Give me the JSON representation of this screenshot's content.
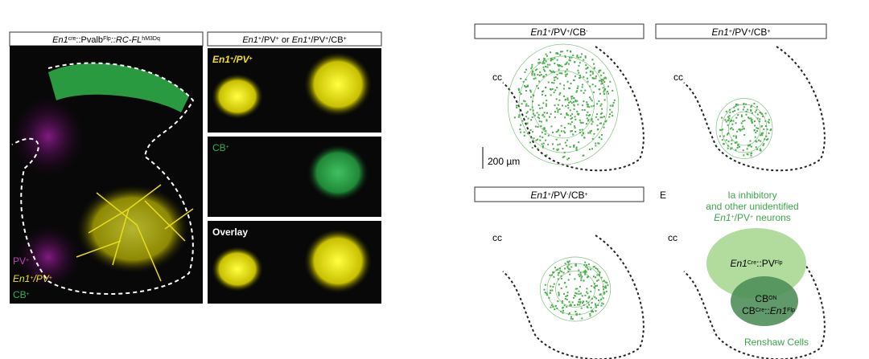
{
  "left": {
    "header": [
      {
        "t": "En1",
        "f": "i"
      },
      {
        "t": "cre",
        "f": "s"
      },
      {
        "t": "::Pvalb"
      },
      {
        "t": "Flp",
        "f": "s"
      },
      {
        "t": "::RC-FL",
        "f": "i"
      },
      {
        "t": "hM3Dq",
        "f": "s"
      }
    ],
    "pv": [
      {
        "t": "PV"
      },
      {
        "t": "+",
        "f": "s"
      }
    ],
    "en1": [
      {
        "t": "En1",
        "f": "i"
      },
      {
        "t": "+",
        "f": "s"
      },
      {
        "t": "/PV",
        "f": "i"
      },
      {
        "t": "+",
        "f": "s"
      }
    ],
    "cb": [
      {
        "t": "CB"
      },
      {
        "t": "+",
        "f": "s"
      }
    ]
  },
  "middle": {
    "header": [
      {
        "t": "En1",
        "f": "i"
      },
      {
        "t": "+",
        "f": "s"
      },
      {
        "t": "/PV"
      },
      {
        "t": "+",
        "f": "s"
      },
      {
        "t": " or "
      },
      {
        "t": "En1",
        "f": "i"
      },
      {
        "t": "+",
        "f": "s"
      },
      {
        "t": "/PV"
      },
      {
        "t": "+",
        "f": "s"
      },
      {
        "t": "/CB"
      },
      {
        "t": "+",
        "f": "s"
      }
    ],
    "en1": [
      {
        "t": "En1",
        "f": "i"
      },
      {
        "t": "+",
        "f": "s"
      },
      {
        "t": "/PV",
        "f": "i"
      },
      {
        "t": "+",
        "f": "s"
      }
    ],
    "cb": [
      {
        "t": "CB"
      },
      {
        "t": "+",
        "f": "s"
      }
    ],
    "overlay": [
      {
        "t": "Overlay"
      }
    ]
  },
  "right": {
    "title_a": [
      {
        "t": "En1",
        "f": "i"
      },
      {
        "t": "+",
        "f": "s"
      },
      {
        "t": "/PV"
      },
      {
        "t": "+",
        "f": "s"
      },
      {
        "t": "/CB"
      },
      {
        "t": "-",
        "f": "s"
      }
    ],
    "title_b": [
      {
        "t": "En1",
        "f": "i"
      },
      {
        "t": "+",
        "f": "s"
      },
      {
        "t": "/PV"
      },
      {
        "t": "+",
        "f": "s"
      },
      {
        "t": "/CB"
      },
      {
        "t": "+",
        "f": "s"
      }
    ],
    "title_c": [
      {
        "t": "En1",
        "f": "i"
      },
      {
        "t": "+",
        "f": "s"
      },
      {
        "t": "/PV"
      },
      {
        "t": "-",
        "f": "s"
      },
      {
        "t": "/CB"
      },
      {
        "t": "+",
        "f": "s"
      }
    ],
    "cc": [
      "cc",
      "cc",
      "cc",
      "cc"
    ],
    "scale": "200 µm",
    "panel_e": "E",
    "ia_1": [
      {
        "t": "Ia inhibitory"
      }
    ],
    "ia_2": [
      {
        "t": "and other unidentified"
      }
    ],
    "ia_3": [
      {
        "t": "En1",
        "f": "i"
      },
      {
        "t": "+",
        "f": "s"
      },
      {
        "t": "/PV"
      },
      {
        "t": "+",
        "f": "s"
      },
      {
        "t": " neurons"
      }
    ],
    "big": [
      {
        "t": "En1",
        "f": "i"
      },
      {
        "t": "Cre",
        "f": "s"
      },
      {
        "t": "::PV"
      },
      {
        "t": "Flp",
        "f": "s"
      }
    ],
    "cbon": [
      {
        "t": "CB"
      },
      {
        "t": "ON",
        "f": "s"
      }
    ],
    "cbcre": [
      {
        "t": "CB"
      },
      {
        "t": "Cre",
        "f": "s"
      },
      {
        "t": "::"
      },
      {
        "t": "En1",
        "f": "i"
      },
      {
        "t": "Flp",
        "f": "s"
      }
    ],
    "renshaw": "Renshaw Cells"
  }
}
